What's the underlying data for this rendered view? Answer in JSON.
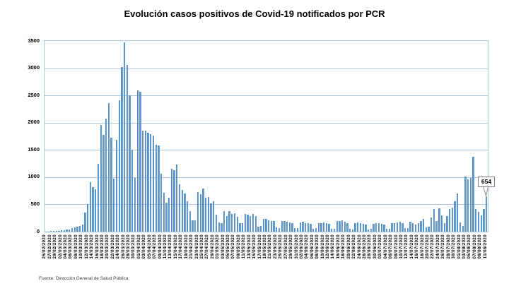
{
  "title": "Evolución casos positivos de Covid-19 notificados por PCR",
  "source": "Fuente: Dirección General de Salud Pública",
  "annotation": {
    "label": "654",
    "date": "11/08/2020",
    "value": 654
  },
  "colors": {
    "bar_fill": "#669dd1",
    "bar_edge": "#4a80b8",
    "grid": "#aac8e4",
    "text": "#000000"
  },
  "y_axis": {
    "ticks": [
      "3500",
      "3000",
      "2500",
      "2000",
      "1500",
      "1000",
      "500",
      "0"
    ],
    "min": 0,
    "max": 3500,
    "step": 500
  },
  "chart_data": {
    "type": "bar",
    "title": "Evolución casos positivos de Covid-19 notificados por PCR",
    "xlabel": "",
    "ylabel": "",
    "ylim": [
      0,
      3500
    ],
    "grid": true,
    "legend": false,
    "label_every": 2,
    "annotated_point": {
      "x": "11/08/2020",
      "value": 654
    },
    "x": [
      "25/02/2020",
      "26/02/2020",
      "27/02/2020",
      "28/02/2020",
      "29/02/2020",
      "01/03/2020",
      "02/03/2020",
      "03/03/2020",
      "04/03/2020",
      "05/03/2020",
      "06/03/2020",
      "07/03/2020",
      "08/03/2020",
      "09/03/2020",
      "10/03/2020",
      "11/03/2020",
      "12/03/2020",
      "13/03/2020",
      "14/03/2020",
      "15/03/2020",
      "16/03/2020",
      "17/03/2020",
      "18/03/2020",
      "19/03/2020",
      "20/03/2020",
      "21/03/2020",
      "22/03/2020",
      "23/03/2020",
      "24/03/2020",
      "25/03/2020",
      "26/03/2020",
      "27/03/2020",
      "28/03/2020",
      "29/03/2020",
      "30/03/2020",
      "31/03/2020",
      "01/04/2020",
      "02/04/2020",
      "03/04/2020",
      "04/04/2020",
      "05/04/2020",
      "06/04/2020",
      "07/04/2020",
      "08/04/2020",
      "09/04/2020",
      "10/04/2020",
      "11/04/2020",
      "12/04/2020",
      "13/04/2020",
      "14/04/2020",
      "15/04/2020",
      "16/04/2020",
      "17/04/2020",
      "18/04/2020",
      "19/04/2020",
      "20/04/2020",
      "21/04/2020",
      "22/04/2020",
      "23/04/2020",
      "24/04/2020",
      "25/04/2020",
      "26/04/2020",
      "27/04/2020",
      "28/04/2020",
      "29/04/2020",
      "30/04/2020",
      "01/05/2020",
      "02/05/2020",
      "03/05/2020",
      "04/05/2020",
      "05/05/2020",
      "06/05/2020",
      "07/05/2020",
      "08/05/2020",
      "09/05/2020",
      "10/05/2020",
      "11/05/2020",
      "12/05/2020",
      "13/05/2020",
      "14/05/2020",
      "15/05/2020",
      "16/05/2020",
      "17/05/2020",
      "18/05/2020",
      "19/05/2020",
      "20/05/2020",
      "21/05/2020",
      "22/05/2020",
      "23/05/2020",
      "24/05/2020",
      "25/05/2020",
      "26/05/2020",
      "27/05/2020",
      "28/05/2020",
      "29/05/2020",
      "30/05/2020",
      "31/05/2020",
      "01/06/2020",
      "02/06/2020",
      "03/06/2020",
      "04/06/2020",
      "05/06/2020",
      "06/06/2020",
      "07/06/2020",
      "08/06/2020",
      "09/06/2020",
      "10/06/2020",
      "11/06/2020",
      "12/06/2020",
      "13/06/2020",
      "14/06/2020",
      "15/06/2020",
      "16/06/2020",
      "17/06/2020",
      "18/06/2020",
      "19/06/2020",
      "20/06/2020",
      "21/06/2020",
      "22/06/2020",
      "23/06/2020",
      "24/06/2020",
      "25/06/2020",
      "26/06/2020",
      "27/06/2020",
      "28/06/2020",
      "29/06/2020",
      "30/06/2020",
      "01/07/2020",
      "02/07/2020",
      "03/07/2020",
      "04/07/2020",
      "05/07/2020",
      "06/07/2020",
      "07/07/2020",
      "08/07/2020",
      "09/07/2020",
      "10/07/2020",
      "11/07/2020",
      "12/07/2020",
      "13/07/2020",
      "14/07/2020",
      "15/07/2020",
      "16/07/2020",
      "17/07/2020",
      "18/07/2020",
      "19/07/2020",
      "20/07/2020",
      "21/07/2020",
      "22/07/2020",
      "23/07/2020",
      "24/07/2020",
      "25/07/2020",
      "26/07/2020",
      "27/07/2020",
      "28/07/2020",
      "29/07/2020",
      "30/07/2020",
      "31/07/2020",
      "01/08/2020",
      "02/08/2020",
      "03/08/2020",
      "04/08/2020",
      "05/08/2020",
      "06/08/2020",
      "07/08/2020",
      "08/08/2020",
      "09/08/2020",
      "10/08/2020",
      "11/08/2020"
    ],
    "values": [
      3,
      5,
      7,
      9,
      12,
      15,
      20,
      28,
      35,
      45,
      60,
      75,
      95,
      110,
      130,
      345,
      500,
      905,
      820,
      776,
      1250,
      1960,
      1770,
      2070,
      2360,
      1720,
      970,
      1680,
      2410,
      3020,
      3470,
      3060,
      2500,
      1510,
      990,
      2590,
      2570,
      1850,
      1850,
      1810,
      1790,
      1760,
      1590,
      1580,
      1060,
      710,
      530,
      620,
      1160,
      1125,
      1230,
      870,
      760,
      700,
      560,
      370,
      205,
      205,
      730,
      690,
      790,
      625,
      640,
      520,
      560,
      305,
      175,
      160,
      370,
      290,
      370,
      320,
      335,
      270,
      150,
      160,
      330,
      310,
      290,
      320,
      280,
      90,
      100,
      240,
      230,
      210,
      200,
      190,
      80,
      70,
      200,
      190,
      180,
      170,
      160,
      60,
      65,
      170,
      180,
      160,
      150,
      140,
      55,
      60,
      150,
      160,
      170,
      150,
      140,
      50,
      55,
      190,
      200,
      210,
      180,
      160,
      50,
      45,
      160,
      170,
      150,
      140,
      130,
      45,
      50,
      140,
      150,
      160,
      140,
      130,
      50,
      55,
      150,
      160,
      170,
      180,
      160,
      60,
      65,
      180,
      150,
      130,
      160,
      200,
      230,
      80,
      90,
      260,
      420,
      200,
      430,
      300,
      150,
      280,
      420,
      445,
      560,
      700,
      170,
      110,
      1010,
      960,
      990,
      1380,
      420,
      358,
      302,
      409,
      654
    ]
  }
}
